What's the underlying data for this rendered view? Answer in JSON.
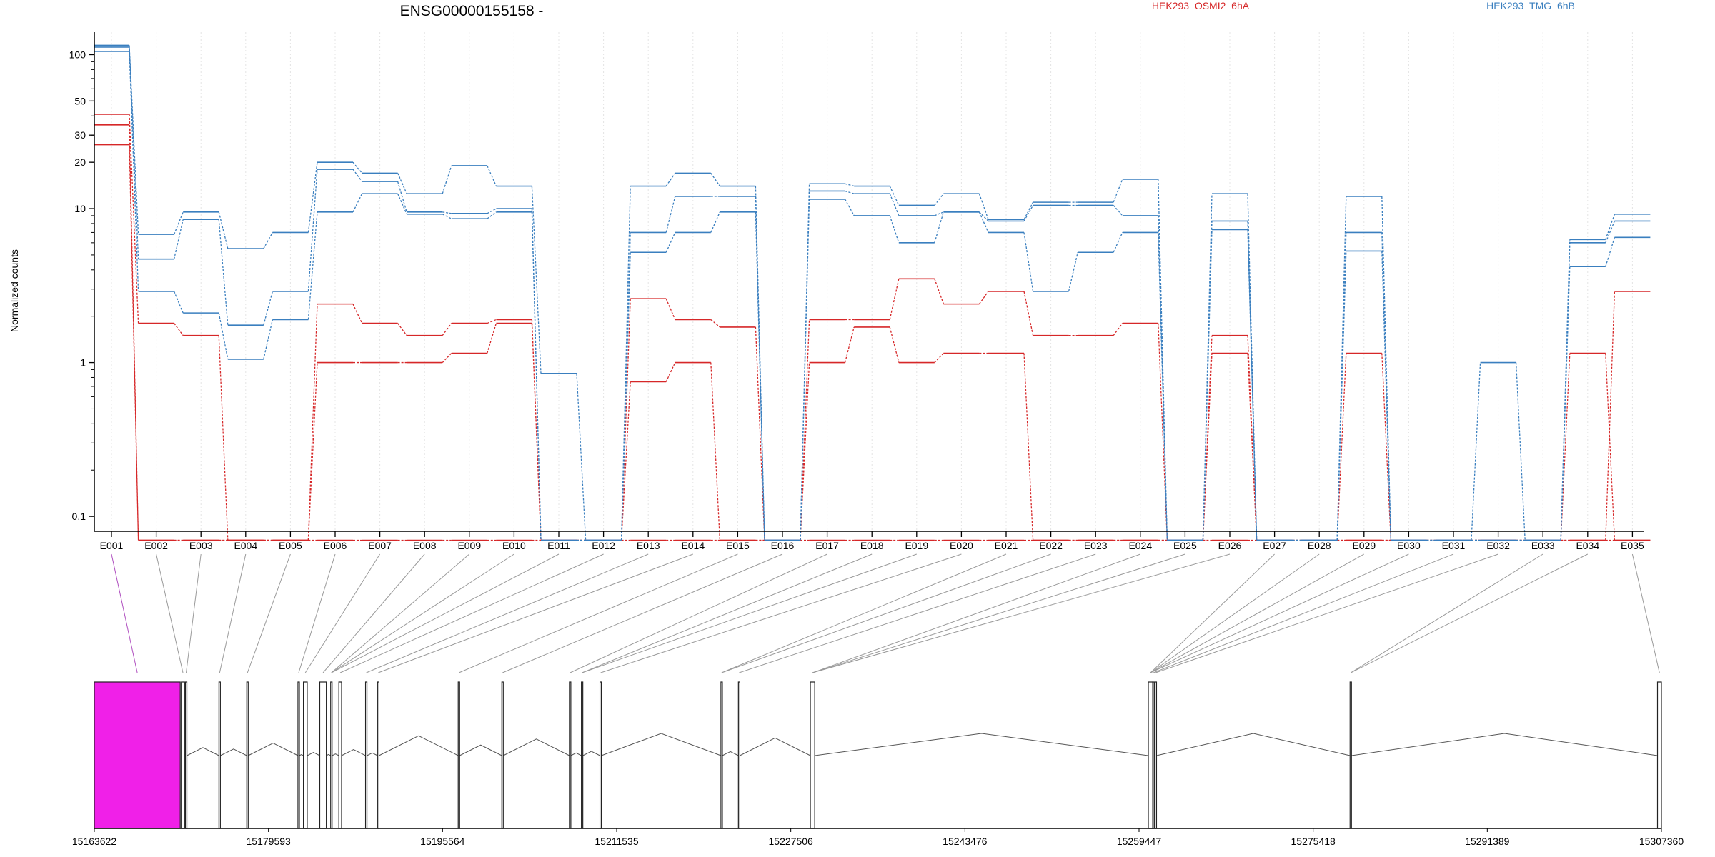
{
  "figure": {
    "title": "ENSG00000155158 -",
    "ylabel": "Normalized counts",
    "legend": [
      {
        "label": "HEK293_OSMI2_6hA",
        "color": "#d62728"
      },
      {
        "label": "HEK293_TMG_6hB",
        "color": "#3a7fbf"
      }
    ]
  },
  "chart_data": [
    {
      "type": "line",
      "title": "ENSG00000155158 -",
      "ylabel": "Normalized counts",
      "yscale": "log",
      "ylim": [
        0.08,
        140
      ],
      "yticks": [
        0.1,
        1,
        10,
        20,
        30,
        50,
        100
      ],
      "ytick_labels": [
        "0.1",
        "1",
        "10",
        "20",
        "30",
        "50",
        "100"
      ],
      "grid": "vertical dotted",
      "legend_position": "top",
      "categories": [
        "E001",
        "E002",
        "E003",
        "E004",
        "E005",
        "E006",
        "E007",
        "E008",
        "E009",
        "E010",
        "E011",
        "E012",
        "E013",
        "E014",
        "E015",
        "E016",
        "E017",
        "E018",
        "E019",
        "E020",
        "E021",
        "E022",
        "E023",
        "E024",
        "E025",
        "E026",
        "E027",
        "E028",
        "E029",
        "E030",
        "E031",
        "E032",
        "E033",
        "E034",
        "E035"
      ],
      "series": [
        {
          "name": "HEK293_OSMI2_6hA",
          "color": "#d62728",
          "values": [
            41,
            1.8,
            1.5,
            0.07,
            0.07,
            2.4,
            1.8,
            1.5,
            1.8,
            1.9,
            0.07,
            0.07,
            2.6,
            1.9,
            1.7,
            0.07,
            1.9,
            1.9,
            3.5,
            2.4,
            2.9,
            1.5,
            1.5,
            1.8,
            0.07,
            1.5,
            0.07,
            0.07,
            0.07,
            0.07,
            0.07,
            0.07,
            0.07,
            0.07,
            2.9
          ]
        },
        {
          "color": "#d62728",
          "values": [
            35,
            0.07,
            0.07,
            0.07,
            0.07,
            1,
            1,
            1,
            1.15,
            1.8,
            0.07,
            0.07,
            0.75,
            1,
            0.07,
            0.07,
            1,
            1.7,
            1,
            1.15,
            1.15,
            0.07,
            0.07,
            0.07,
            0.07,
            1.15,
            0.07,
            0.07,
            1.15,
            0.07,
            0.07,
            0.07,
            0.07,
            1.15,
            0.07
          ]
        },
        {
          "color": "#d62728",
          "values": [
            26,
            0.07,
            0.07,
            0.07,
            0.07,
            0.07,
            0.07,
            0.07,
            0.07,
            0.07,
            0.07,
            0.07,
            0.07,
            0.07,
            0.07,
            0.07,
            0.07,
            0.07,
            0.07,
            0.07,
            0.07,
            0.07,
            0.07,
            0.07,
            0.07,
            0.07,
            0.07,
            0.07,
            0.07,
            0.07,
            0.07,
            0.07,
            0.07,
            0.07,
            0.07
          ]
        },
        {
          "name": "HEK293_TMG_6hB",
          "color": "#3a7fbf",
          "values": [
            115,
            6.8,
            9.5,
            5.5,
            7,
            20,
            17,
            12.5,
            19,
            14,
            0.85,
            0.07,
            14,
            17,
            14,
            0.07,
            14.5,
            14,
            10.5,
            12.5,
            8.5,
            11,
            11,
            15.5,
            0.07,
            12.5,
            0.07,
            0.07,
            12,
            0.07,
            0.07,
            0.07,
            0.07,
            6.3,
            9.2
          ]
        },
        {
          "color": "#3a7fbf",
          "values": [
            112,
            4.7,
            8.5,
            1.75,
            2.9,
            18,
            15,
            9.5,
            9.3,
            10,
            0.07,
            0.07,
            7,
            12,
            12,
            0.07,
            13,
            12.5,
            9,
            9.5,
            8.3,
            10.5,
            10.5,
            9,
            0.07,
            8.3,
            0.07,
            0.07,
            7,
            0.07,
            0.07,
            0.07,
            0.07,
            6,
            8.3
          ]
        },
        {
          "color": "#3a7fbf",
          "values": [
            105,
            2.9,
            2.1,
            1.05,
            1.9,
            9.5,
            12.5,
            9.2,
            8.6,
            9.5,
            0.07,
            0.07,
            5.2,
            7,
            9.5,
            0.07,
            11.5,
            9,
            6,
            9.5,
            7,
            2.9,
            5.2,
            7,
            0.07,
            7.3,
            0.07,
            0.07,
            5.3,
            0.07,
            0.07,
            1,
            0.07,
            4.2,
            6.5
          ]
        }
      ]
    },
    {
      "type": "gene-structure",
      "xlabel_ticks": [
        "15163622",
        "15179593",
        "15195564",
        "15211535",
        "15227506",
        "15243476",
        "15259447",
        "15275418",
        "15291389",
        "15307360"
      ],
      "x_range": [
        15163622,
        15307360
      ],
      "highlight_color": "#f020e8",
      "exon_starts": [
        15163622,
        15171600,
        15171980,
        15175050,
        15177600,
        15182300,
        15182800,
        15184300,
        15185300,
        15186050,
        15188500,
        15189600,
        15197000,
        15201000,
        15207200,
        15208300,
        15210000,
        15221100,
        15222700,
        15229300,
        15260300,
        15260700,
        15260900,
        15278800,
        15307000
      ],
      "exon_ends": [
        15171500,
        15171900,
        15172000,
        15175150,
        15177700,
        15182380,
        15183150,
        15184900,
        15185400,
        15186300,
        15188600,
        15189700,
        15197100,
        15201100,
        15207300,
        15208400,
        15210100,
        15221200,
        15222800,
        15229700,
        15260700,
        15260800,
        15261050,
        15278900,
        15307360
      ],
      "exon_to_segment": [
        0,
        1,
        2,
        3,
        4,
        5,
        6,
        7,
        8,
        8,
        8,
        9,
        10,
        11,
        12,
        13,
        14,
        15,
        15,
        16,
        17,
        17,
        18,
        19,
        19,
        19,
        20,
        20,
        20,
        20,
        21,
        22,
        23,
        23,
        24
      ]
    }
  ]
}
